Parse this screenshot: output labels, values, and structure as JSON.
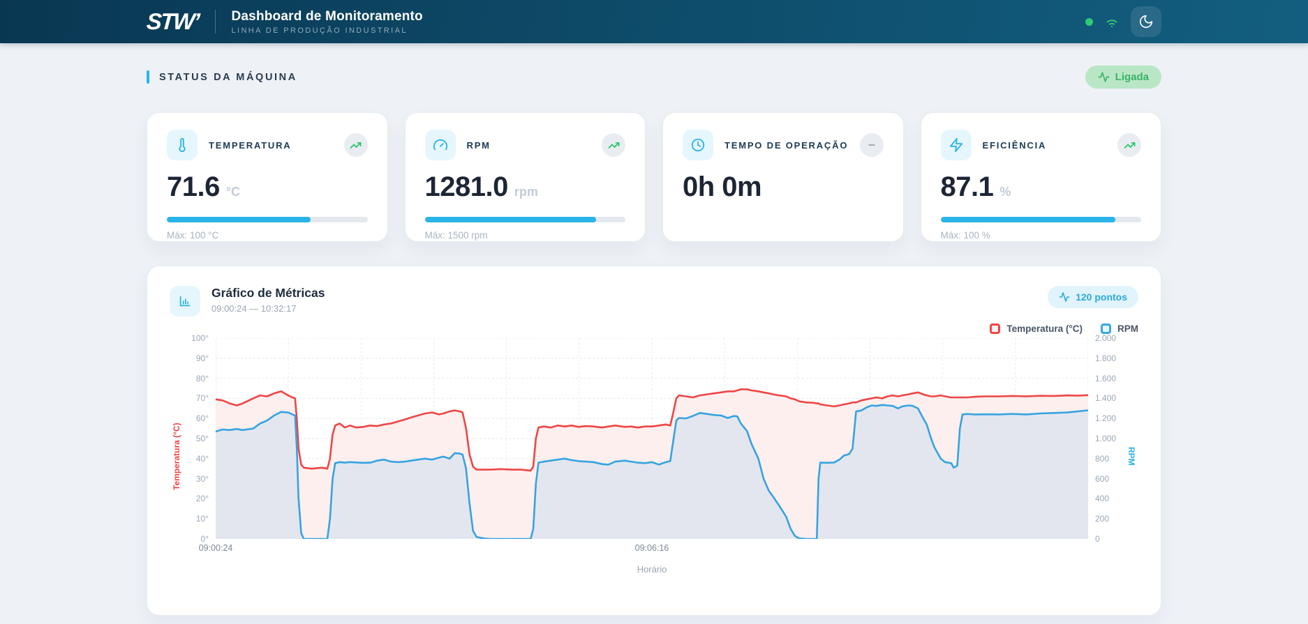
{
  "colors": {
    "header_gradient_start": "#093752",
    "header_gradient_end": "#135e80",
    "accent_cyan": "#29b4e9",
    "success_green": "#2ecc71",
    "badge_green_bg": "#b9e7c5",
    "badge_green_text": "#3bb269",
    "temp_red": "#ee4545",
    "rpm_blue": "#36a3e0",
    "page_bg": "#eef1f6"
  },
  "header": {
    "logo": "STW’",
    "title": "Dashboard de Monitoramento",
    "subtitle": "LINHA DE PRODUÇÃO INDUSTRIAL"
  },
  "section": {
    "title": "STATUS DA MÁQUINA",
    "status_badge": "Ligada"
  },
  "cards": [
    {
      "label": "TEMPERATURA",
      "value": "71.6",
      "unit": "°C",
      "max_label": "Máx: 100 °C",
      "progress_pct": 71.6,
      "icon": "thermometer-icon",
      "trend": "up"
    },
    {
      "label": "RPM",
      "value": "1281.0",
      "unit": "rpm",
      "max_label": "Máx: 1500 rpm",
      "progress_pct": 85.4,
      "icon": "gauge-icon",
      "trend": "up"
    },
    {
      "label": "TEMPO DE OPERAÇÃO",
      "value": "0h 0m",
      "icon": "clock-icon",
      "trend": "neutral"
    },
    {
      "label": "EFICIÊNCIA",
      "value": "87.1",
      "unit": "%",
      "max_label": "Máx: 100 %",
      "progress_pct": 87.1,
      "icon": "bolt-icon",
      "trend": "up"
    }
  ],
  "chart_card": {
    "title": "Gráfico de Métricas",
    "subtitle": "09:00:24 — 10:32:17",
    "points_badge": "120 pontos"
  },
  "chart_data": {
    "type": "line",
    "title": "Gráfico de Métricas",
    "period": "09:00:24 — 10:32:17",
    "points_count": 120,
    "xlabel": "Horário",
    "x_ticks": [
      {
        "label": "09:00:24",
        "pos_pct": 0
      },
      {
        "label": "09:06:16",
        "pos_pct": 50
      }
    ],
    "left_axis": {
      "label": "Temperatura (°C)",
      "range": [
        0,
        100
      ],
      "color": "#ef4444",
      "ticks": [
        "100°",
        "90°",
        "80°",
        "70°",
        "60°",
        "50°",
        "40°",
        "30°",
        "20°",
        "10°",
        "0°"
      ]
    },
    "right_axis": {
      "label": "RPM",
      "range": [
        0,
        2000
      ],
      "color": "#29b0e5",
      "ticks": [
        "2.000",
        "1.800",
        "1.600",
        "1.400",
        "1.200",
        "1.000",
        "800",
        "600",
        "400",
        "200",
        "0"
      ]
    },
    "legend": [
      {
        "label": "Temperatura (°C)",
        "color": "#ef4444",
        "fill": "#fdf2f2"
      },
      {
        "label": "RPM",
        "color": "#3aa7e3",
        "fill": "#e8f6fd"
      }
    ],
    "grid": {
      "h_divisions": 10,
      "v_divisions": 12
    },
    "x_pct": [
      0,
      0.8,
      1.6,
      2.4,
      3.1,
      4.3,
      5.1,
      5.9,
      6.7,
      7.5,
      8.3,
      8.8,
      9.1,
      9.3,
      9.5,
      9.8,
      10.1,
      11,
      12.2,
      12.8,
      13.1,
      13.4,
      13.7,
      14.2,
      14.8,
      15.4,
      16.1,
      16.9,
      17.7,
      18.5,
      19.3,
      20.1,
      20.9,
      21.7,
      22.4,
      23.2,
      24,
      24.8,
      25.6,
      26.1,
      26.8,
      27.4,
      28,
      28.3,
      28.7,
      29.1,
      29.5,
      29.9,
      30.7,
      31.5,
      32.7,
      33.9,
      35,
      36.1,
      36.4,
      36.7,
      37,
      37.6,
      38.4,
      39.2,
      40,
      40.8,
      41.6,
      42.4,
      43.3,
      44.3,
      45,
      45.8,
      46.9,
      47.6,
      48.4,
      49.2,
      50,
      50.8,
      51.6,
      52.1,
      52.4,
      52.8,
      53.1,
      53.9,
      54.7,
      55.5,
      56.3,
      57.1,
      57.9,
      58.7,
      59.4,
      59.8,
      60.2,
      60.9,
      61.4,
      62.2,
      62.8,
      63.4,
      63.9,
      64.6,
      65.4,
      65.9,
      66.4,
      66.9,
      67.7,
      68.5,
      68.9,
      69.1,
      69.3,
      70.1,
      70.9,
      71.5,
      72,
      72.6,
      73,
      73.4,
      74,
      74.6,
      75.2,
      75.7,
      76.4,
      77,
      77.6,
      78.2,
      78.7,
      79.4,
      79.9,
      80.5,
      81.1,
      81.5,
      82,
      82.4,
      83.1,
      83.6,
      84.3,
      84.6,
      85,
      85.3,
      85.6,
      86.2,
      87,
      88.2,
      89.8,
      91.3,
      92.9,
      94.5,
      96.1,
      97.6,
      98.8,
      100
    ],
    "series": [
      {
        "name": "Temperatura (°C)",
        "axis": "left",
        "color": "#ee4545",
        "area_fill": "#fbeceb",
        "area_opacity": 0.85,
        "values": [
          69.5,
          69,
          67.5,
          66.5,
          67.5,
          70,
          71.5,
          71,
          72.5,
          73.5,
          71.5,
          70.5,
          70,
          60,
          45,
          37,
          35.5,
          35,
          35.5,
          35,
          40,
          52,
          56.5,
          57.5,
          55.5,
          56.5,
          55.5,
          55.8,
          56.5,
          56.2,
          57,
          57.5,
          58.5,
          59.5,
          60.5,
          61.5,
          62.5,
          63,
          62,
          62.5,
          63.5,
          64,
          63.5,
          63,
          55,
          42,
          36,
          34.5,
          34.5,
          34.5,
          34.8,
          34.5,
          34.5,
          34,
          36,
          50,
          55.5,
          56,
          55.5,
          56.5,
          56,
          56.5,
          55.8,
          56.2,
          56,
          55.5,
          56,
          56.5,
          55.8,
          56,
          55.5,
          56,
          56,
          56.5,
          57,
          56.5,
          62,
          70,
          71.5,
          71,
          70.5,
          71.5,
          72,
          72.5,
          73,
          73.5,
          73.5,
          74,
          74.5,
          74.5,
          74,
          73.5,
          73,
          72.5,
          72,
          71.5,
          71,
          70,
          69.5,
          68.5,
          68,
          67.8,
          67.5,
          67.5,
          67,
          66.5,
          66,
          66.5,
          67,
          67.5,
          68,
          68,
          69,
          69.5,
          70,
          70.5,
          70,
          71,
          71.5,
          71,
          71.5,
          72,
          72.5,
          73,
          72,
          71.5,
          71,
          71,
          71.5,
          71,
          70.5,
          70.5,
          70.5,
          70.5,
          70.5,
          70.5,
          70.8,
          71,
          71,
          71.2,
          71,
          71.3,
          71.2,
          71.5,
          71.4,
          71.6
        ]
      },
      {
        "name": "RPM",
        "axis": "right",
        "color": "#36a3e0",
        "area_fill": "#e3e5ee",
        "area_opacity": 0.95,
        "values": [
          1070,
          1090,
          1085,
          1095,
          1085,
          1100,
          1150,
          1180,
          1230,
          1265,
          1260,
          1240,
          1230,
          900,
          400,
          60,
          0,
          0,
          0,
          0,
          200,
          600,
          755,
          765,
          760,
          765,
          762,
          758,
          760,
          780,
          790,
          770,
          765,
          770,
          780,
          790,
          800,
          790,
          810,
          820,
          800,
          855,
          850,
          840,
          700,
          350,
          80,
          20,
          5,
          0,
          0,
          0,
          0,
          0,
          100,
          550,
          760,
          770,
          780,
          790,
          800,
          785,
          775,
          770,
          765,
          745,
          740,
          770,
          780,
          770,
          760,
          755,
          765,
          740,
          765,
          775,
          950,
          1180,
          1205,
          1200,
          1225,
          1255,
          1245,
          1235,
          1230,
          1205,
          1225,
          1220,
          1150,
          1075,
          950,
          800,
          600,
          480,
          420,
          330,
          220,
          100,
          30,
          5,
          0,
          0,
          0,
          600,
          760,
          758,
          762,
          790,
          830,
          845,
          900,
          1270,
          1280,
          1310,
          1330,
          1325,
          1335,
          1330,
          1325,
          1300,
          1320,
          1330,
          1325,
          1300,
          1200,
          1140,
          1000,
          910,
          800,
          765,
          755,
          710,
          730,
          1100,
          1240,
          1245,
          1240,
          1242,
          1240,
          1245,
          1240,
          1250,
          1255,
          1260,
          1270,
          1281
        ]
      }
    ]
  }
}
